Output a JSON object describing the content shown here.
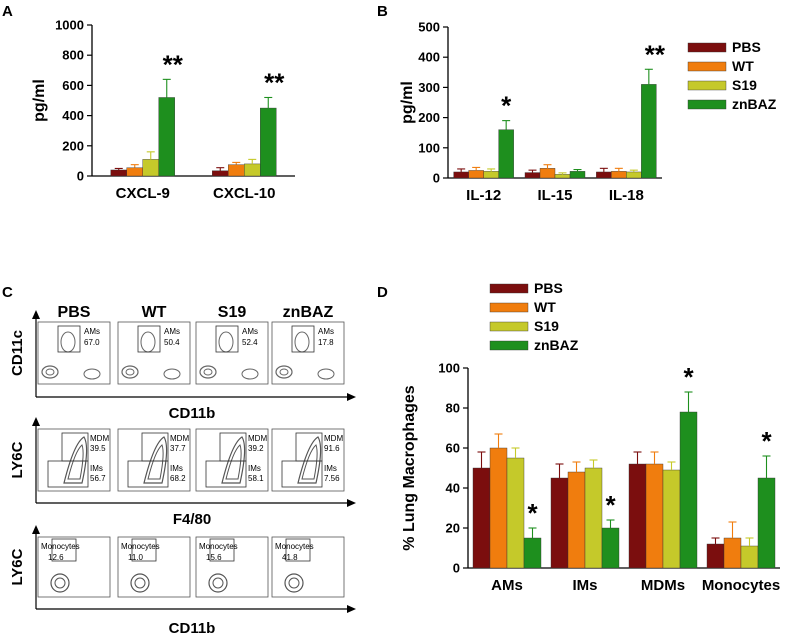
{
  "colors": {
    "PBS": "#7b0e0e",
    "WT": "#f07d0e",
    "S19": "#c5c92a",
    "znBAZ": "#1e8f1e",
    "axis": "#000000"
  },
  "legend": [
    "PBS",
    "WT",
    "S19",
    "znBAZ"
  ],
  "panel_labels": {
    "A": "A",
    "B": "B",
    "C": "C",
    "D": "D"
  },
  "chart_data": [
    {
      "panel": "A",
      "type": "bar",
      "title": "",
      "xlabel": "",
      "ylabel": "pg/ml",
      "ylim": [
        0,
        1000
      ],
      "yticks": [
        0,
        200,
        400,
        600,
        800,
        1000
      ],
      "categories": [
        "CXCL-9",
        "CXCL-10"
      ],
      "series": [
        {
          "name": "PBS",
          "values": [
            40,
            35
          ],
          "errors": [
            10,
            20
          ]
        },
        {
          "name": "WT",
          "values": [
            55,
            75
          ],
          "errors": [
            20,
            15
          ]
        },
        {
          "name": "S19",
          "values": [
            110,
            80
          ],
          "errors": [
            50,
            30
          ]
        },
        {
          "name": "znBAZ",
          "values": [
            520,
            450
          ],
          "errors": [
            120,
            70
          ]
        }
      ],
      "annotations": [
        {
          "category": "CXCL-9",
          "text": "**"
        },
        {
          "category": "CXCL-10",
          "text": "**"
        }
      ]
    },
    {
      "panel": "B",
      "type": "bar",
      "title": "",
      "xlabel": "",
      "ylabel": "pg/ml",
      "ylim": [
        0,
        500
      ],
      "yticks": [
        0,
        100,
        200,
        300,
        400,
        500
      ],
      "categories": [
        "IL-12",
        "IL-15",
        "IL-18"
      ],
      "series": [
        {
          "name": "PBS",
          "values": [
            20,
            18,
            20
          ],
          "errors": [
            10,
            8,
            12
          ]
        },
        {
          "name": "WT",
          "values": [
            25,
            32,
            22
          ],
          "errors": [
            10,
            12,
            10
          ]
        },
        {
          "name": "S19",
          "values": [
            22,
            12,
            20
          ],
          "errors": [
            8,
            5,
            6
          ]
        },
        {
          "name": "znBAZ",
          "values": [
            160,
            22,
            310
          ],
          "errors": [
            30,
            6,
            50
          ]
        }
      ],
      "annotations": [
        {
          "category": "IL-12",
          "text": "*"
        },
        {
          "category": "IL-18",
          "text": "**"
        }
      ]
    },
    {
      "panel": "D",
      "type": "bar",
      "title": "",
      "xlabel": "",
      "ylabel": "% Lung Macrophages",
      "ylim": [
        0,
        100
      ],
      "yticks": [
        0,
        20,
        40,
        60,
        80,
        100
      ],
      "categories": [
        "AMs",
        "IMs",
        "MDMs",
        "Monocytes"
      ],
      "series": [
        {
          "name": "PBS",
          "values": [
            50,
            45,
            52,
            12
          ],
          "errors": [
            8,
            7,
            6,
            3
          ]
        },
        {
          "name": "WT",
          "values": [
            60,
            48,
            52,
            15
          ],
          "errors": [
            7,
            5,
            6,
            8
          ]
        },
        {
          "name": "S19",
          "values": [
            55,
            50,
            49,
            11
          ],
          "errors": [
            5,
            4,
            4,
            4
          ]
        },
        {
          "name": "znBAZ",
          "values": [
            15,
            20,
            78,
            45
          ],
          "errors": [
            5,
            4,
            10,
            11
          ]
        }
      ],
      "annotations": [
        {
          "category": "AMs",
          "text": "*"
        },
        {
          "category": "IMs",
          "text": "*"
        },
        {
          "category": "MDMs",
          "text": "*"
        },
        {
          "category": "Monocytes",
          "text": "*"
        }
      ]
    }
  ],
  "flow_panel": {
    "columns": [
      "PBS",
      "WT",
      "S19",
      "znBAZ"
    ],
    "rows": [
      {
        "y_axis": "CD11c",
        "x_axis": "CD11b",
        "gates": [
          [
            {
              "name": "AMs",
              "value": "67.0"
            }
          ],
          [
            {
              "name": "AMs",
              "value": "50.4"
            }
          ],
          [
            {
              "name": "AMs",
              "value": "52.4"
            }
          ],
          [
            {
              "name": "AMs",
              "value": "17.8"
            }
          ]
        ]
      },
      {
        "y_axis": "LY6C",
        "x_axis": "F4/80",
        "gates": [
          [
            {
              "name": "MDM",
              "value": "39.5"
            },
            {
              "name": "IMs",
              "value": "56.7"
            }
          ],
          [
            {
              "name": "MDM",
              "value": "37.7"
            },
            {
              "name": "IMs",
              "value": "68.2"
            }
          ],
          [
            {
              "name": "MDM",
              "value": "39.2"
            },
            {
              "name": "IMs",
              "value": "58.1"
            }
          ],
          [
            {
              "name": "MDM",
              "value": "91.6"
            },
            {
              "name": "IMs",
              "value": "7.56"
            }
          ]
        ]
      },
      {
        "y_axis": "LY6C",
        "x_axis": "CD11b",
        "gates": [
          [
            {
              "name": "Monocytes",
              "value": "12.6"
            }
          ],
          [
            {
              "name": "Monocytes",
              "value": "11.0"
            }
          ],
          [
            {
              "name": "Monocytes",
              "value": "15.6"
            }
          ],
          [
            {
              "name": "Monocytes",
              "value": "41.8"
            }
          ]
        ]
      }
    ]
  }
}
